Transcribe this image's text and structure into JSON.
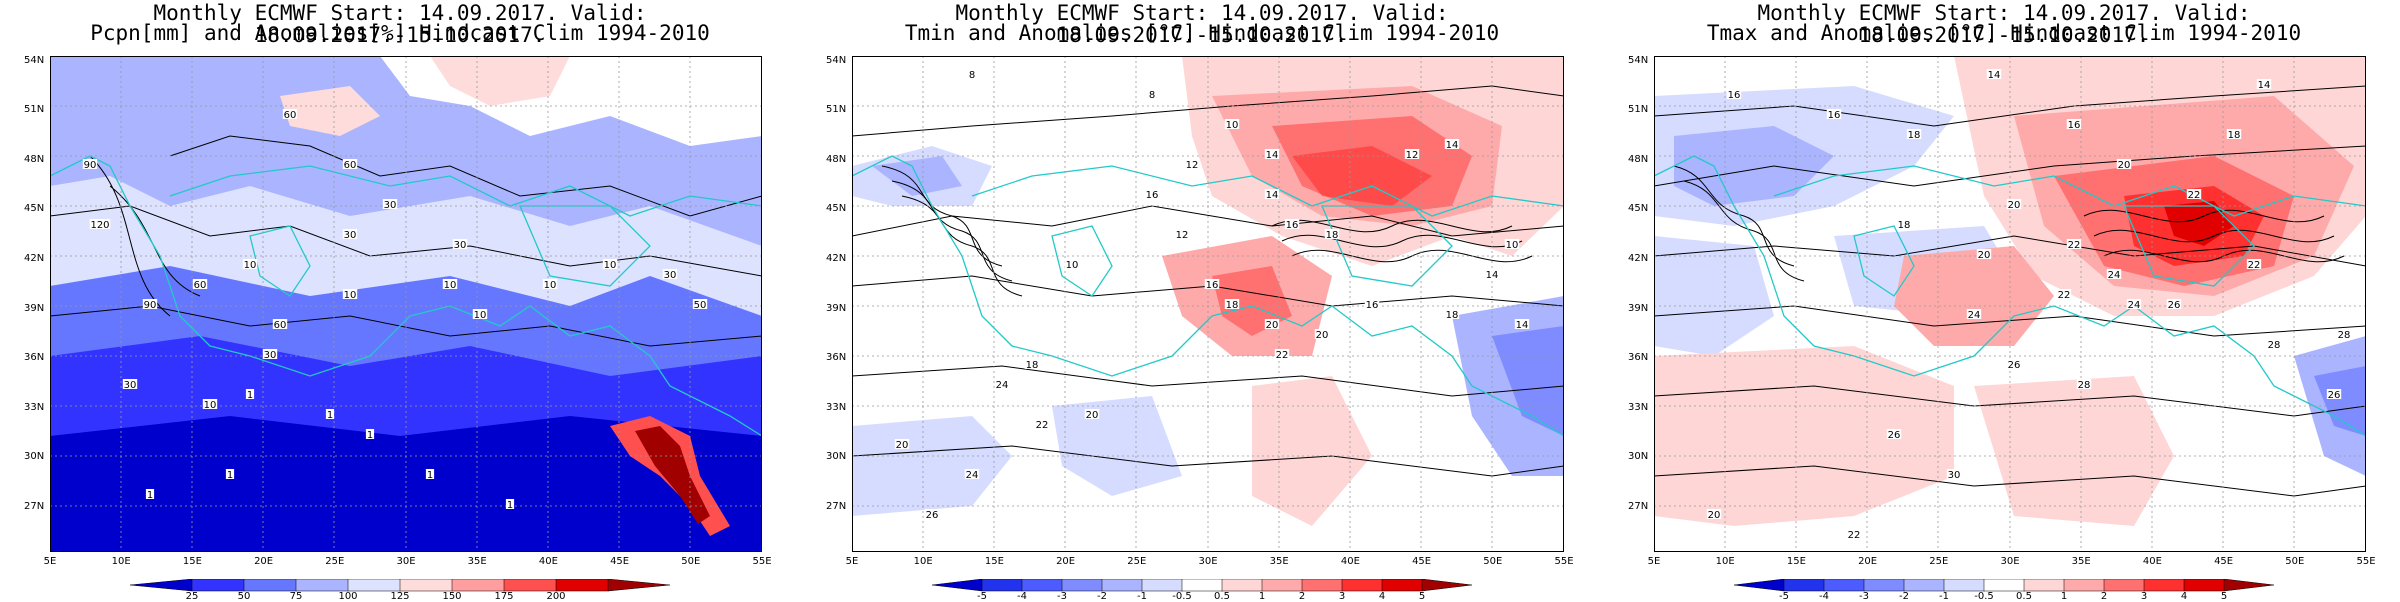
{
  "panels": [
    {
      "id": "pcpn",
      "title_line1": "Monthly ECMWF Start: 14.09.2017. Valid: 18.09.2017.-15.10.2017.",
      "title_line2": "Pcpn[mm] and Anomalies[%] Hindcast Clim 1994-2010",
      "lat_labels": [
        "54N",
        "51N",
        "48N",
        "45N",
        "42N",
        "39N",
        "36N",
        "33N",
        "30N",
        "27N"
      ],
      "lon_labels": [
        "5E",
        "10E",
        "15E",
        "20E",
        "25E",
        "30E",
        "35E",
        "40E",
        "45E",
        "50E",
        "55E"
      ],
      "colorbar_labels": [
        "25",
        "50",
        "75",
        "100",
        "125",
        "150",
        "175",
        "200"
      ],
      "colorbar_colors": [
        "#0000cc",
        "#3333ff",
        "#6677ff",
        "#aab4ff",
        "#dde2ff",
        "#ffdcdc",
        "#ff9e9e",
        "#ff5050",
        "#e00000",
        "#a00000"
      ],
      "contour_labels": [
        "60",
        "60",
        "30",
        "10",
        "60",
        "30",
        "30",
        "90",
        "120",
        "90",
        "60",
        "30",
        "10",
        "10",
        "10",
        "10",
        "10",
        "30",
        "1",
        "10",
        "1",
        "1",
        "1",
        "1",
        "1",
        "1",
        "30",
        "50"
      ]
    },
    {
      "id": "tmin",
      "title_line1": "Monthly ECMWF Start: 14.09.2017. Valid: 18.09.2017.-15.10.2017.",
      "title_line2": "Tmin and Anomalies [°C] Hindcast Clim 1994-2010",
      "lat_labels": [
        "54N",
        "51N",
        "48N",
        "45N",
        "42N",
        "39N",
        "36N",
        "33N",
        "30N",
        "27N"
      ],
      "lon_labels": [
        "5E",
        "10E",
        "15E",
        "20E",
        "25E",
        "30E",
        "35E",
        "40E",
        "45E",
        "50E",
        "55E"
      ],
      "colorbar_labels": [
        "-5",
        "-4",
        "-3",
        "-2",
        "-1",
        "-0.5",
        "0.5",
        "1",
        "2",
        "3",
        "4",
        "5"
      ],
      "colorbar_colors": [
        "#0000cc",
        "#2233ee",
        "#4c5cff",
        "#7e8cff",
        "#aab4ff",
        "#d6dcff",
        "#ffffff",
        "#ffd6d6",
        "#ffaaaa",
        "#ff7070",
        "#ff3030",
        "#e00000",
        "#a00000"
      ],
      "contour_labels": [
        "8",
        "8",
        "10",
        "12",
        "14",
        "12",
        "14",
        "16",
        "14",
        "16",
        "18",
        "12",
        "10",
        "16",
        "18",
        "20",
        "22",
        "20",
        "16",
        "18",
        "24",
        "20",
        "22",
        "24",
        "26",
        "20",
        "18",
        "10",
        "14",
        "14"
      ]
    },
    {
      "id": "tmax",
      "title_line1": "Monthly ECMWF Start: 14.09.2017. Valid: 18.09.2017.-15.10.2017.",
      "title_line2": "Tmax and Anomalies [°C] Hindcast Clim 1994-2010",
      "lat_labels": [
        "54N",
        "51N",
        "48N",
        "45N",
        "42N",
        "39N",
        "36N",
        "33N",
        "30N",
        "27N"
      ],
      "lon_labels": [
        "5E",
        "10E",
        "15E",
        "20E",
        "25E",
        "30E",
        "35E",
        "40E",
        "45E",
        "50E",
        "55E"
      ],
      "colorbar_labels": [
        "-5",
        "-4",
        "-3",
        "-2",
        "-1",
        "-0.5",
        "0.5",
        "1",
        "2",
        "3",
        "4",
        "5"
      ],
      "colorbar_colors": [
        "#0000cc",
        "#2233ee",
        "#4c5cff",
        "#7e8cff",
        "#aab4ff",
        "#d6dcff",
        "#ffffff",
        "#ffd6d6",
        "#ffaaaa",
        "#ff7070",
        "#ff3030",
        "#e00000",
        "#a00000"
      ],
      "contour_labels": [
        "14",
        "16",
        "16",
        "18",
        "14",
        "16",
        "18",
        "20",
        "22",
        "20",
        "18",
        "20",
        "22",
        "24",
        "26",
        "22",
        "24",
        "28",
        "22",
        "24",
        "26",
        "28",
        "30",
        "26",
        "22",
        "20",
        "28",
        "26"
      ]
    }
  ]
}
